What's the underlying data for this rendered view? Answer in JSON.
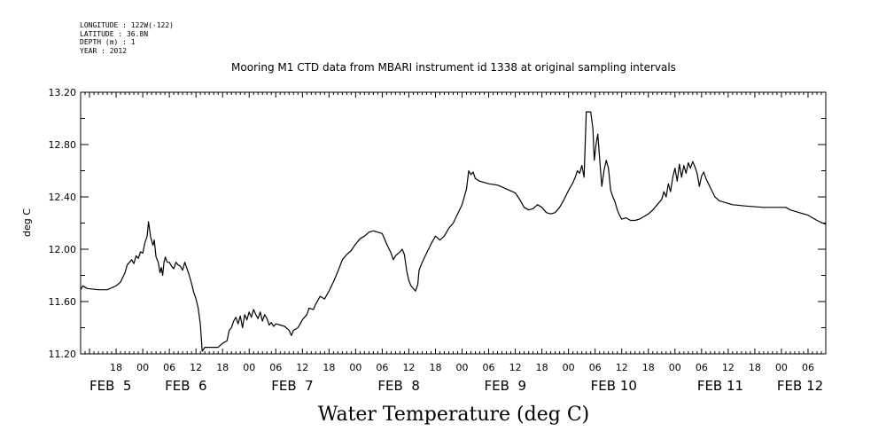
{
  "header": {
    "longitude": "LONGITUDE : 122W(-122)",
    "latitude": "LATITUDE : 36.8N",
    "depth": "DEPTH (m) : 1",
    "year": "YEAR : 2012"
  },
  "chart_data": {
    "type": "line",
    "title": "Mooring M1 CTD data from MBARI instrument id 1338 at original sampling intervals",
    "xlabel": "Water Temperature (deg C)",
    "ylabel": "deg C",
    "ylim": [
      11.2,
      13.2
    ],
    "yticks": [
      "11.20",
      "11.60",
      "12.00",
      "12.40",
      "12.80",
      "13.20"
    ],
    "x_units": "hours since FEB 5 00:00",
    "xlim": [
      -14,
      154
    ],
    "hour_tick_labels": [
      {
        "x": -6,
        "label": "18"
      },
      {
        "x": 0,
        "label": "00"
      },
      {
        "x": 6,
        "label": "06"
      },
      {
        "x": 12,
        "label": "12"
      },
      {
        "x": 18,
        "label": "18"
      },
      {
        "x": 24,
        "label": "00"
      },
      {
        "x": 30,
        "label": "06"
      },
      {
        "x": 36,
        "label": "12"
      },
      {
        "x": 42,
        "label": "18"
      },
      {
        "x": 48,
        "label": "00"
      },
      {
        "x": 54,
        "label": "06"
      },
      {
        "x": 60,
        "label": "12"
      },
      {
        "x": 66,
        "label": "18"
      },
      {
        "x": 72,
        "label": "00"
      },
      {
        "x": 78,
        "label": "06"
      },
      {
        "x": 84,
        "label": "12"
      },
      {
        "x": 90,
        "label": "18"
      },
      {
        "x": 96,
        "label": "00"
      },
      {
        "x": 102,
        "label": "06"
      },
      {
        "x": 108,
        "label": "12"
      },
      {
        "x": 114,
        "label": "18"
      },
      {
        "x": 120,
        "label": "00"
      },
      {
        "x": 126,
        "label": "06"
      },
      {
        "x": 132,
        "label": "12"
      },
      {
        "x": 138,
        "label": "18"
      },
      {
        "x": 144,
        "label": "00"
      },
      {
        "x": 150,
        "label": "06"
      }
    ],
    "date_labels": [
      {
        "x": -12,
        "label": "FEB  5"
      },
      {
        "x": 5,
        "label": "FEB  6"
      },
      {
        "x": 29,
        "label": "FEB  7"
      },
      {
        "x": 53,
        "label": "FEB  8"
      },
      {
        "x": 77,
        "label": "FEB  9"
      },
      {
        "x": 101,
        "label": "FEB 10"
      },
      {
        "x": 125,
        "label": "FEB 11"
      },
      {
        "x": 143,
        "label": "FEB 12"
      }
    ],
    "series": [
      {
        "color": "#000000",
        "points": [
          [
            -14,
            11.69
          ],
          [
            -13.5,
            11.72
          ],
          [
            -12.5,
            11.7
          ],
          [
            -10,
            11.69
          ],
          [
            -8,
            11.69
          ],
          [
            -6,
            11.72
          ],
          [
            -5,
            11.75
          ],
          [
            -4,
            11.82
          ],
          [
            -3.5,
            11.88
          ],
          [
            -2.5,
            11.92
          ],
          [
            -2,
            11.89
          ],
          [
            -1.5,
            11.95
          ],
          [
            -1,
            11.93
          ],
          [
            -0.5,
            11.98
          ],
          [
            0,
            11.97
          ],
          [
            0.5,
            12.05
          ],
          [
            1,
            12.1
          ],
          [
            1.3,
            12.21
          ],
          [
            1.8,
            12.09
          ],
          [
            2.3,
            12.03
          ],
          [
            2.6,
            12.07
          ],
          [
            3,
            11.94
          ],
          [
            3.5,
            11.9
          ],
          [
            3.9,
            11.82
          ],
          [
            4.2,
            11.86
          ],
          [
            4.5,
            11.8
          ],
          [
            4.8,
            11.9
          ],
          [
            5.1,
            11.94
          ],
          [
            5.5,
            11.9
          ],
          [
            6,
            11.9
          ],
          [
            6.5,
            11.87
          ],
          [
            7,
            11.85
          ],
          [
            7.5,
            11.9
          ],
          [
            8,
            11.88
          ],
          [
            8.5,
            11.87
          ],
          [
            9,
            11.84
          ],
          [
            9.5,
            11.9
          ],
          [
            10,
            11.85
          ],
          [
            10.5,
            11.8
          ],
          [
            11,
            11.74
          ],
          [
            11.5,
            11.67
          ],
          [
            12,
            11.62
          ],
          [
            12.5,
            11.55
          ],
          [
            13,
            11.42
          ],
          [
            13.4,
            11.22
          ],
          [
            14,
            11.25
          ],
          [
            15,
            11.25
          ],
          [
            17,
            11.25
          ],
          [
            18,
            11.28
          ],
          [
            19,
            11.3
          ],
          [
            19.5,
            11.38
          ],
          [
            20,
            11.4
          ],
          [
            20.5,
            11.45
          ],
          [
            21,
            11.48
          ],
          [
            21.5,
            11.43
          ],
          [
            22,
            11.49
          ],
          [
            22.5,
            11.4
          ],
          [
            23,
            11.5
          ],
          [
            23.5,
            11.46
          ],
          [
            24,
            11.52
          ],
          [
            24.5,
            11.48
          ],
          [
            25,
            11.54
          ],
          [
            25.5,
            11.5
          ],
          [
            26,
            11.47
          ],
          [
            26.5,
            11.52
          ],
          [
            27,
            11.45
          ],
          [
            27.5,
            11.5
          ],
          [
            28,
            11.47
          ],
          [
            28.5,
            11.42
          ],
          [
            29,
            11.44
          ],
          [
            29.5,
            11.41
          ],
          [
            30,
            11.43
          ],
          [
            31,
            11.42
          ],
          [
            32,
            11.41
          ],
          [
            33,
            11.38
          ],
          [
            33.5,
            11.34
          ],
          [
            34,
            11.38
          ],
          [
            35,
            11.4
          ],
          [
            36,
            11.46
          ],
          [
            37,
            11.5
          ],
          [
            37.5,
            11.55
          ],
          [
            38.5,
            11.54
          ],
          [
            39,
            11.58
          ],
          [
            40,
            11.64
          ],
          [
            41,
            11.62
          ],
          [
            42,
            11.68
          ],
          [
            43,
            11.75
          ],
          [
            44,
            11.83
          ],
          [
            45,
            11.92
          ],
          [
            46,
            11.96
          ],
          [
            47,
            11.99
          ],
          [
            48,
            12.04
          ],
          [
            49,
            12.08
          ],
          [
            50,
            12.1
          ],
          [
            51,
            12.13
          ],
          [
            52,
            12.14
          ],
          [
            53,
            12.13
          ],
          [
            54,
            12.12
          ],
          [
            55,
            12.04
          ],
          [
            56,
            11.97
          ],
          [
            56.5,
            11.92
          ],
          [
            57,
            11.95
          ],
          [
            58,
            11.98
          ],
          [
            58.5,
            12.0
          ],
          [
            59,
            11.96
          ],
          [
            59.5,
            11.84
          ],
          [
            60,
            11.76
          ],
          [
            60.5,
            11.72
          ],
          [
            61,
            11.7
          ],
          [
            61.5,
            11.68
          ],
          [
            62,
            11.73
          ],
          [
            62.3,
            11.84
          ],
          [
            63,
            11.9
          ],
          [
            64,
            11.97
          ],
          [
            65,
            12.04
          ],
          [
            66,
            12.1
          ],
          [
            67,
            12.07
          ],
          [
            68,
            12.1
          ],
          [
            69,
            12.16
          ],
          [
            70,
            12.2
          ],
          [
            71,
            12.27
          ],
          [
            72,
            12.34
          ],
          [
            73,
            12.46
          ],
          [
            73.5,
            12.6
          ],
          [
            74,
            12.57
          ],
          [
            74.5,
            12.59
          ],
          [
            75,
            12.54
          ],
          [
            76,
            12.52
          ],
          [
            78,
            12.5
          ],
          [
            80,
            12.49
          ],
          [
            82,
            12.46
          ],
          [
            84,
            12.43
          ],
          [
            85,
            12.38
          ],
          [
            86,
            12.32
          ],
          [
            87,
            12.3
          ],
          [
            88,
            12.31
          ],
          [
            89,
            12.34
          ],
          [
            90,
            12.32
          ],
          [
            91,
            12.28
          ],
          [
            92,
            12.27
          ],
          [
            93,
            12.28
          ],
          [
            94,
            12.32
          ],
          [
            95,
            12.38
          ],
          [
            96,
            12.45
          ],
          [
            97,
            12.51
          ],
          [
            97.5,
            12.55
          ],
          [
            98,
            12.6
          ],
          [
            98.5,
            12.58
          ],
          [
            99,
            12.64
          ],
          [
            99.5,
            12.55
          ],
          [
            100,
            13.05
          ],
          [
            101,
            13.05
          ],
          [
            101.5,
            12.92
          ],
          [
            101.8,
            12.68
          ],
          [
            102.2,
            12.8
          ],
          [
            102.6,
            12.88
          ],
          [
            103,
            12.7
          ],
          [
            103.5,
            12.48
          ],
          [
            104,
            12.6
          ],
          [
            104.5,
            12.68
          ],
          [
            105,
            12.62
          ],
          [
            105.5,
            12.45
          ],
          [
            106,
            12.4
          ],
          [
            106.5,
            12.36
          ],
          [
            107,
            12.3
          ],
          [
            107.5,
            12.26
          ],
          [
            108,
            12.23
          ],
          [
            109,
            12.24
          ],
          [
            110,
            12.22
          ],
          [
            111,
            12.22
          ],
          [
            112,
            12.23
          ],
          [
            113,
            12.25
          ],
          [
            114,
            12.27
          ],
          [
            115,
            12.3
          ],
          [
            116,
            12.34
          ],
          [
            117,
            12.38
          ],
          [
            117.5,
            12.44
          ],
          [
            118,
            12.4
          ],
          [
            118.5,
            12.5
          ],
          [
            119,
            12.44
          ],
          [
            119.5,
            12.55
          ],
          [
            120,
            12.62
          ],
          [
            120.5,
            12.52
          ],
          [
            121,
            12.65
          ],
          [
            121.5,
            12.55
          ],
          [
            122,
            12.64
          ],
          [
            122.5,
            12.58
          ],
          [
            123,
            12.66
          ],
          [
            123.5,
            12.62
          ],
          [
            124,
            12.67
          ],
          [
            124.5,
            12.63
          ],
          [
            125,
            12.58
          ],
          [
            125.5,
            12.48
          ],
          [
            126,
            12.56
          ],
          [
            126.5,
            12.59
          ],
          [
            127,
            12.54
          ],
          [
            128,
            12.47
          ],
          [
            129,
            12.4
          ],
          [
            130,
            12.37
          ],
          [
            131,
            12.36
          ],
          [
            133,
            12.34
          ],
          [
            136,
            12.33
          ],
          [
            140,
            12.32
          ],
          [
            144,
            12.32
          ],
          [
            145,
            12.32
          ],
          [
            146,
            12.3
          ],
          [
            148,
            12.28
          ],
          [
            150,
            12.26
          ],
          [
            152,
            12.22
          ],
          [
            154,
            12.19
          ]
        ]
      }
    ]
  }
}
